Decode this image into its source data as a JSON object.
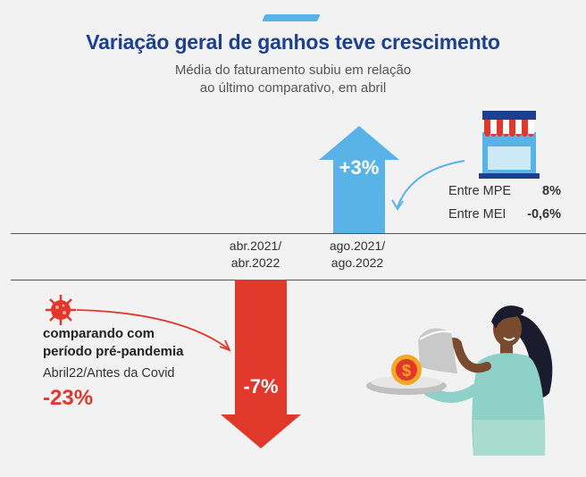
{
  "header": {
    "title": "Variação geral de ganhos teve crescimento",
    "subtitle_line1": "Média do faturamento subiu em relação",
    "subtitle_line2": "ao último comparativo, em abril"
  },
  "chart_data": {
    "type": "bar",
    "title": "Variação geral de ganhos teve crescimento",
    "categories": [
      "abr.2021/ abr.2022",
      "ago.2021/ ago.2022"
    ],
    "values": [
      -7,
      3
    ],
    "value_labels": [
      "-7%",
      "+3%"
    ],
    "unit": "%",
    "category_lines": [
      [
        "abr.2021/",
        "abr.2022"
      ],
      [
        "ago.2021/",
        "ago.2022"
      ]
    ],
    "colors": {
      "positive": "#5ab3e6",
      "negative": "#e0382b"
    }
  },
  "breakdown": {
    "mpe_label": "Entre MPE",
    "mpe_value": "8%",
    "mei_label": "Entre MEI",
    "mei_value": "-0,6%"
  },
  "pre_pandemic": {
    "title_line1": "comparando com",
    "title_line2": "período pré-pandemia",
    "note": "Abril22/Antes da Covid",
    "value": "-23%"
  },
  "colors": {
    "title": "#1d3f8f",
    "accent_blue": "#5ab3e6",
    "accent_red": "#e0382b",
    "background": "#f2f2f2"
  },
  "icons": [
    "store-icon",
    "virus-icon",
    "waitress-illustration",
    "dollar-coin-icon"
  ]
}
